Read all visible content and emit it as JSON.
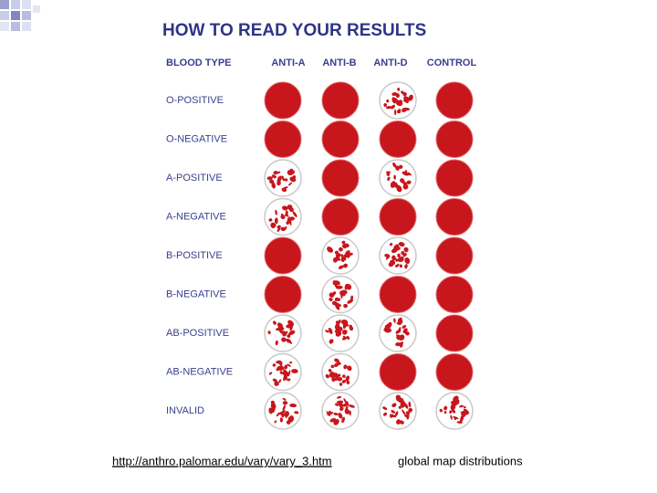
{
  "header": {
    "title": "HOW TO READ YOUR RESULTS"
  },
  "table": {
    "columns": [
      "BLOOD TYPE",
      "ANTI-A",
      "ANTI-B",
      "ANTI-D",
      "CONTROL"
    ],
    "rows": [
      "O-POSITIVE",
      "O-NEGATIVE",
      "A-POSITIVE",
      "A-NEGATIVE",
      "B-POSITIVE",
      "B-NEGATIVE",
      "AB-POSITIVE",
      "AB-NEGATIVE",
      "INVALID"
    ]
  },
  "footer": {
    "link": "http://anthro.palomar.edu/vary/vary_3.htm",
    "text": "global map distributions"
  }
}
